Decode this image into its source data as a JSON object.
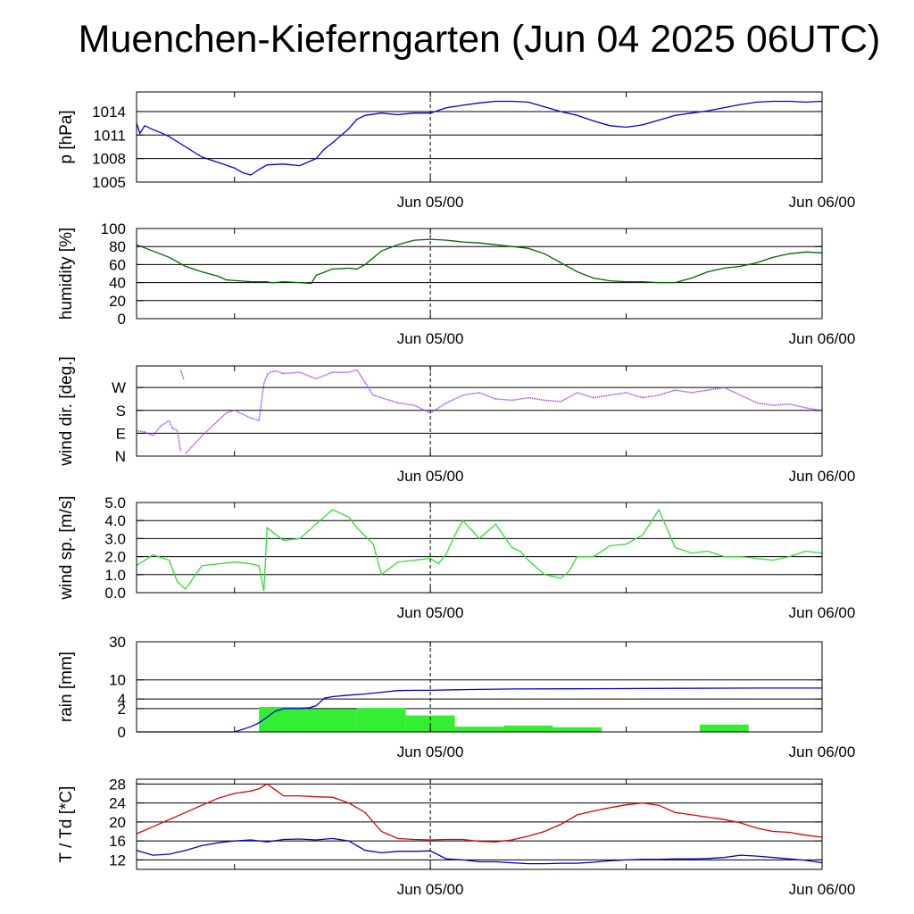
{
  "title": "Muenchen-Kieferngarten (Jun 04 2025 06UTC)",
  "chart_data": [
    {
      "id": "pressure",
      "type": "line",
      "ylabel": "p [hPa]",
      "yticks": [
        1005,
        1008,
        1011,
        1014
      ],
      "ytick_labels": [
        "1005",
        "1008",
        "1011",
        "1014"
      ],
      "ylim": [
        1005,
        1016.5
      ],
      "xlim": [
        -18,
        24
      ],
      "xtick_labels": [
        "Jun 05/00",
        "Jun 06/00"
      ],
      "xtick_hours": [
        0,
        24
      ],
      "color": "#0000dd",
      "series": [
        {
          "x": [
            -18,
            -17.8,
            -17.5,
            -17,
            -16.5,
            -16,
            -15,
            -14,
            -13,
            -12,
            -11.5,
            -11,
            -10.5,
            -10,
            -9,
            -8,
            -7,
            -6.5,
            -6,
            -5,
            -4.5,
            -4,
            -3,
            -2,
            -1,
            0,
            1,
            2,
            3,
            4,
            5,
            6,
            7,
            8,
            9,
            10,
            11,
            12,
            13,
            14,
            15,
            16,
            17,
            18,
            19,
            20,
            21,
            22,
            23,
            24
          ],
          "y": [
            1012.5,
            1011.2,
            1012.2,
            1011.7,
            1011.3,
            1010.8,
            1009.5,
            1008.2,
            1007.5,
            1006.8,
            1006.2,
            1005.9,
            1006.6,
            1007.2,
            1007.3,
            1007.1,
            1008,
            1009.2,
            1010,
            1011.8,
            1013,
            1013.5,
            1013.8,
            1013.6,
            1013.8,
            1013.8,
            1014.5,
            1014.8,
            1015.1,
            1015.3,
            1015.3,
            1015.2,
            1014.6,
            1014,
            1013.5,
            1012.8,
            1012.2,
            1012,
            1012.3,
            1012.9,
            1013.5,
            1013.8,
            1014.1,
            1014.5,
            1014.9,
            1015.2,
            1015.3,
            1015.3,
            1015.2,
            1015.3
          ]
        }
      ]
    },
    {
      "id": "humidity",
      "type": "line",
      "ylabel": "humidity [%]",
      "yticks": [
        0,
        20,
        40,
        60,
        80,
        100
      ],
      "ytick_labels": [
        "0",
        "20",
        "40",
        "60",
        "80",
        "100"
      ],
      "ylim": [
        0,
        100
      ],
      "xlim": [
        -18,
        24
      ],
      "xtick_labels": [
        "Jun 05/00",
        "Jun 06/00"
      ],
      "xtick_hours": [
        0,
        24
      ],
      "color": "#006400",
      "series": [
        {
          "x": [
            -18,
            -17,
            -16,
            -15,
            -14,
            -13,
            -12.5,
            -11,
            -10,
            -9.8,
            -9.5,
            -9,
            -8,
            -7.3,
            -7,
            -6,
            -5,
            -4.5,
            -4,
            -3,
            -2,
            -1,
            0,
            1,
            2,
            3,
            4,
            5,
            6,
            7,
            8,
            9,
            10,
            11,
            12,
            13,
            14,
            15,
            16,
            17,
            18,
            19,
            20,
            21,
            22,
            23,
            24
          ],
          "y": [
            82,
            75,
            68,
            58,
            52,
            47,
            43,
            41,
            41,
            40,
            40,
            41,
            40,
            39,
            48,
            55,
            56,
            55,
            60,
            75,
            82,
            87,
            88,
            87,
            85,
            84,
            82,
            80,
            78,
            72,
            62,
            52,
            45,
            42,
            41,
            41,
            40,
            40,
            45,
            52,
            56,
            58,
            62,
            68,
            72,
            74,
            73
          ]
        }
      ]
    },
    {
      "id": "wind-direction",
      "type": "scatter",
      "ylabel": "wind dir. [deg.]",
      "yticks": [
        0,
        90,
        180,
        270
      ],
      "ytick_labels": [
        "N",
        "E",
        "S",
        "W"
      ],
      "ylim": [
        0,
        355
      ],
      "xlim": [
        -18,
        24
      ],
      "xtick_labels": [
        "Jun 05/00",
        "Jun 06/00"
      ],
      "xtick_hours": [
        0,
        24
      ],
      "color": "#9933ff",
      "series": [
        {
          "x": [
            -18,
            -17.5,
            -17,
            -16.5,
            -16,
            -15.8,
            -15.5,
            -15.3,
            -15.3,
            -15.1,
            -15,
            -14,
            -13,
            -12.5,
            -12,
            -11,
            -10.5,
            -10.2,
            -10,
            -9.8,
            -9.5,
            -9,
            -8,
            -7,
            -6,
            -5,
            -4.5,
            -4,
            -3.5,
            -3,
            -2,
            -1,
            0,
            1,
            2,
            3,
            4,
            5,
            6,
            7,
            8,
            9,
            10,
            11,
            12,
            13,
            14,
            15,
            16,
            17,
            18,
            19,
            20,
            21,
            22,
            23,
            24
          ],
          "y": [
            100,
            95,
            80,
            120,
            140,
            110,
            100,
            20,
            340,
            300,
            10,
            80,
            140,
            170,
            180,
            150,
            140,
            285,
            320,
            330,
            335,
            325,
            330,
            305,
            330,
            330,
            340,
            290,
            240,
            230,
            210,
            200,
            170,
            210,
            240,
            250,
            225,
            220,
            230,
            220,
            215,
            250,
            230,
            240,
            250,
            230,
            240,
            260,
            250,
            260,
            270,
            240,
            210,
            200,
            205,
            190,
            180
          ]
        }
      ]
    },
    {
      "id": "wind-speed",
      "type": "line",
      "ylabel": "wind sp. [m/s]",
      "yticks": [
        0,
        1,
        2,
        3,
        4,
        5
      ],
      "ytick_labels": [
        "0.0",
        "1.0",
        "2.0",
        "3.0",
        "4.0",
        "5.0"
      ],
      "ylim": [
        0,
        5
      ],
      "xlim": [
        -18,
        24
      ],
      "xtick_labels": [
        "Jun 05/00",
        "Jun 06/00"
      ],
      "xtick_hours": [
        0,
        24
      ],
      "color": "#33dd33",
      "series": [
        {
          "x": [
            -18,
            -17,
            -16,
            -15.5,
            -15,
            -14,
            -12,
            -11,
            -10.5,
            -10.2,
            -10,
            -9,
            -8,
            -7,
            -6,
            -5,
            -4.5,
            -3.5,
            -3,
            -2,
            -1,
            0,
            0.5,
            1,
            1.5,
            2,
            2.5,
            3,
            4,
            5,
            5.5,
            6,
            7,
            8,
            8.5,
            9,
            10,
            11,
            12,
            13,
            14,
            15,
            16,
            17,
            18,
            19,
            20,
            21,
            22,
            23,
            24
          ],
          "y": [
            1.5,
            2.1,
            1.8,
            0.6,
            0.2,
            1.5,
            1.7,
            1.6,
            1.5,
            0.1,
            3.6,
            2.9,
            3.0,
            3.8,
            4.6,
            4.2,
            3.6,
            2.7,
            1.0,
            1.7,
            1.8,
            1.9,
            1.6,
            2.2,
            3.2,
            4.0,
            3.5,
            3.0,
            3.8,
            2.5,
            2.3,
            1.8,
            1.0,
            0.8,
            1.2,
            2.0,
            2.0,
            2.6,
            2.7,
            3.2,
            4.6,
            2.5,
            2.2,
            2.3,
            2.0,
            2.0,
            1.9,
            1.8,
            2.0,
            2.3,
            2.2
          ]
        }
      ]
    },
    {
      "id": "rain",
      "type": "bar+line",
      "ylabel": "rain [mm]",
      "yticks": [
        0,
        2,
        4,
        10,
        30
      ],
      "ytick_labels": [
        "0",
        "2",
        "4",
        "10",
        "30"
      ],
      "ylim": [
        0,
        30
      ],
      "scale": "sqrt",
      "xlim": [
        -18,
        24
      ],
      "xtick_labels": [
        "Jun 05/00",
        "Jun 06/00"
      ],
      "xtick_hours": [
        0,
        24
      ],
      "bar_color": "#33ee33",
      "line_color": "#0000dd",
      "bars": [
        {
          "x0": -10.5,
          "x1": -7.5,
          "value": 2.3
        },
        {
          "x0": -7.5,
          "x1": -4.5,
          "value": 1.9
        },
        {
          "x0": -4.5,
          "x1": -1.5,
          "value": 2.1
        },
        {
          "x0": -1.5,
          "x1": 1.5,
          "value": 1.0
        },
        {
          "x0": 1.5,
          "x1": 4.5,
          "value": 0.1
        },
        {
          "x0": 4.5,
          "x1": 7.5,
          "value": 0.15
        },
        {
          "x0": 7.5,
          "x1": 10.5,
          "value": 0.08
        },
        {
          "x0": 16.5,
          "x1": 19.5,
          "value": 0.2
        }
      ],
      "series": [
        {
          "x": [
            -18,
            -12,
            -11,
            -10.5,
            -10,
            -9.5,
            -9,
            -8.5,
            -8,
            -7.5,
            -7,
            -6.5,
            -6,
            -5,
            -4,
            -3,
            -2,
            -1,
            0,
            2,
            5,
            10,
            15,
            20,
            24
          ],
          "y": [
            0,
            0,
            0.1,
            0.3,
            0.8,
            1.6,
            2.0,
            2.0,
            2.0,
            2.1,
            2.5,
            4.2,
            4.6,
            5.0,
            5.3,
            5.8,
            6.3,
            6.4,
            6.4,
            6.6,
            6.8,
            6.9,
            7.0,
            7.1,
            7.1
          ]
        }
      ]
    },
    {
      "id": "temperature",
      "type": "line",
      "ylabel": "T / Td [*C]",
      "yticks": [
        12,
        16,
        20,
        24,
        28
      ],
      "ytick_labels": [
        "12",
        "16",
        "20",
        "24",
        "28"
      ],
      "ylim": [
        10,
        29
      ],
      "xlim": [
        -18,
        24
      ],
      "xtick_labels": [
        "Jun 05/00",
        "Jun 06/00"
      ],
      "xtick_hours": [
        0,
        24
      ],
      "series": [
        {
          "name": "T",
          "color": "#dd0000",
          "x": [
            -18,
            -17,
            -16,
            -15,
            -14,
            -13,
            -12,
            -11,
            -10.5,
            -10,
            -9,
            -8,
            -7,
            -6,
            -5,
            -4,
            -3,
            -2,
            -1,
            0,
            1,
            2,
            3,
            4,
            5,
            6,
            7,
            8,
            9,
            10,
            11,
            12,
            13,
            14,
            15,
            16,
            17,
            18,
            19,
            20,
            21,
            22,
            23,
            24
          ],
          "y": [
            17.5,
            19,
            20.5,
            22,
            23.5,
            25,
            26,
            26.5,
            27,
            28,
            25.5,
            25.5,
            25.3,
            25.2,
            24,
            22,
            18,
            16.5,
            16.3,
            16.2,
            16.3,
            16.3,
            15.9,
            15.8,
            16.2,
            17,
            18,
            19.5,
            21.5,
            22.3,
            23,
            23.6,
            24,
            23.5,
            22,
            21.5,
            21,
            20.5,
            19.8,
            18.7,
            18,
            17.8,
            17.2,
            16.8
          ]
        },
        {
          "name": "Td",
          "color": "#0000cc",
          "x": [
            -18,
            -17,
            -16,
            -15,
            -14,
            -13,
            -12,
            -11,
            -10,
            -9,
            -8,
            -7,
            -6,
            -5,
            -4,
            -3,
            -2,
            -1,
            0,
            1,
            2,
            3,
            4,
            5,
            6,
            7,
            8,
            9,
            10,
            11,
            12,
            13,
            14,
            15,
            16,
            17,
            18,
            19,
            20,
            21,
            22,
            23,
            24
          ],
          "y": [
            14,
            13,
            13.2,
            14,
            15,
            15.6,
            16,
            16.2,
            15.8,
            16.3,
            16.4,
            16.2,
            16.5,
            16,
            14,
            13.5,
            13.8,
            13.8,
            13.9,
            12.2,
            12,
            11.6,
            11.6,
            11.4,
            11.2,
            11.2,
            11.3,
            11.3,
            11.5,
            11.8,
            12,
            12.1,
            12.1,
            12.2,
            12.2,
            12.3,
            12.5,
            13,
            12.8,
            12.5,
            12.2,
            11.9,
            11.4
          ]
        }
      ]
    }
  ]
}
